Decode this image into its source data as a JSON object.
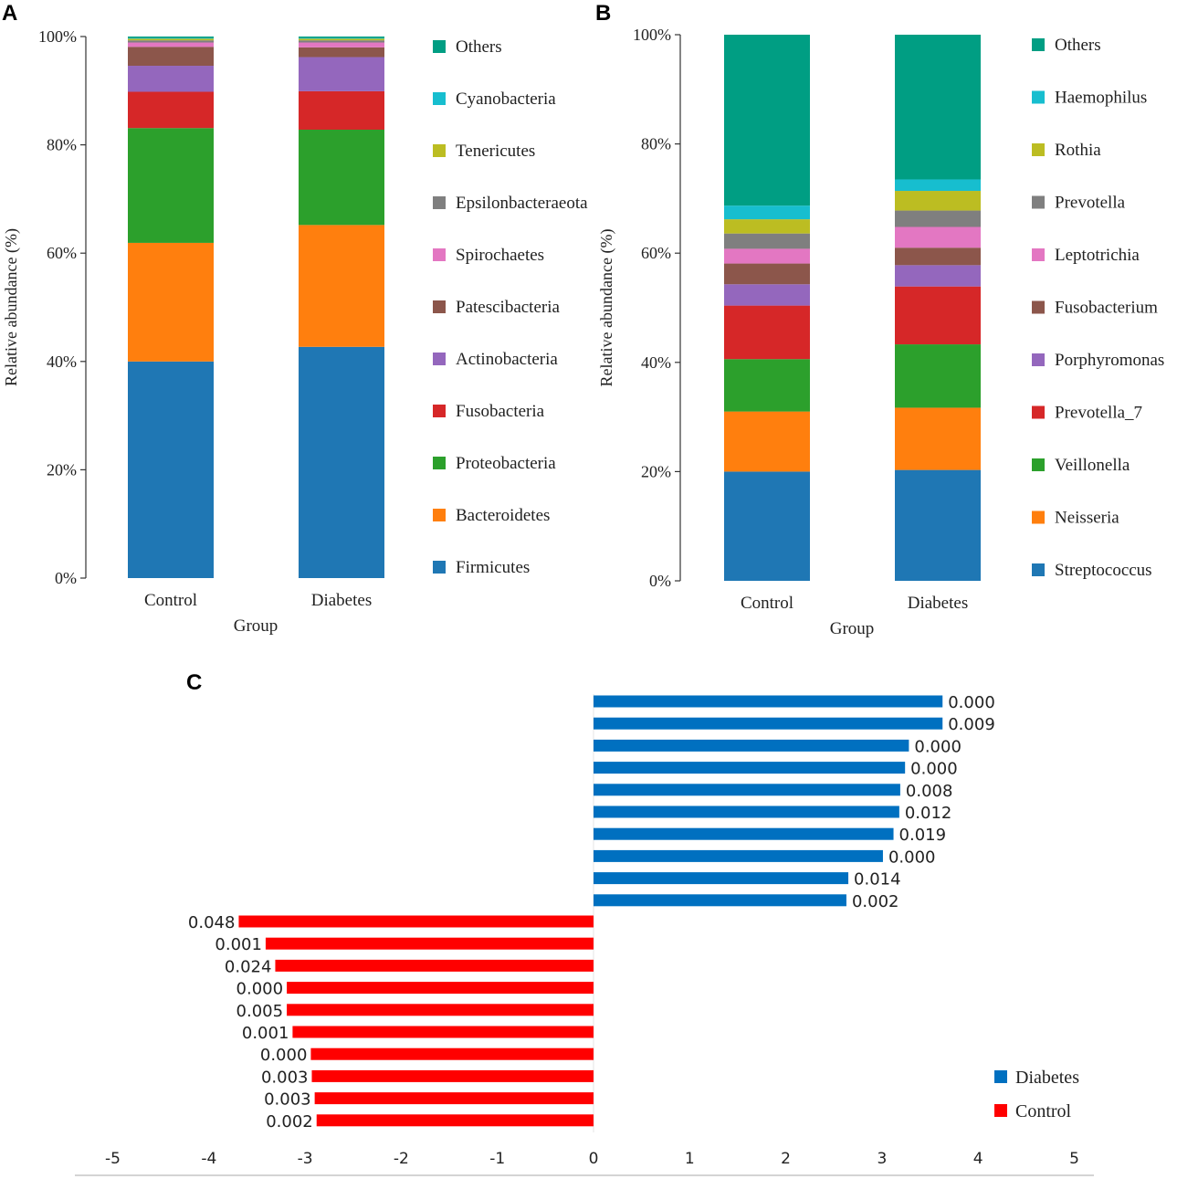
{
  "chart_data": [
    {
      "panel": "A",
      "type": "bar",
      "stacked": true,
      "categories": [
        "Control",
        "Diabetes"
      ],
      "xlabel": "Group",
      "ylabel": "Relative abundance (%)",
      "yticks": [
        "0%",
        "20%",
        "40%",
        "60%",
        "80%",
        "100%"
      ],
      "ylim": [
        0,
        100
      ],
      "series": [
        {
          "name": "Firmicutes",
          "color": "#1f77b4",
          "values": [
            40.0,
            42.7
          ]
        },
        {
          "name": "Bacteroidetes",
          "color": "#ff7f0e",
          "values": [
            21.9,
            22.5
          ]
        },
        {
          "name": "Proteobacteria",
          "color": "#2ca02c",
          "values": [
            21.2,
            17.6
          ]
        },
        {
          "name": "Fusobacteria",
          "color": "#d62728",
          "values": [
            6.7,
            7.1
          ]
        },
        {
          "name": "Actinobacteria",
          "color": "#9467bd",
          "values": [
            4.8,
            6.3
          ]
        },
        {
          "name": "Patescibacteria",
          "color": "#8c564b",
          "values": [
            3.5,
            1.8
          ]
        },
        {
          "name": "Spirochaetes",
          "color": "#e377c2",
          "values": [
            0.8,
            0.9
          ]
        },
        {
          "name": "Epsilonbacteraeota",
          "color": "#7f7f7f",
          "values": [
            0.4,
            0.4
          ]
        },
        {
          "name": "Tenericutes",
          "color": "#bcbd22",
          "values": [
            0.3,
            0.3
          ]
        },
        {
          "name": "Cyanobacteria",
          "color": "#17becf",
          "values": [
            0.1,
            0.1
          ]
        },
        {
          "name": "Others",
          "color": "#009e83",
          "values": [
            0.3,
            0.3
          ]
        }
      ]
    },
    {
      "panel": "B",
      "type": "bar",
      "stacked": true,
      "categories": [
        "Control",
        "Diabetes"
      ],
      "xlabel": "Group",
      "ylabel": "Relative abundance (%)",
      "yticks": [
        "0%",
        "20%",
        "40%",
        "60%",
        "80%",
        "100%"
      ],
      "ylim": [
        0,
        100
      ],
      "series": [
        {
          "name": "Streptococcus",
          "color": "#1f77b4",
          "values": [
            20.0,
            20.3
          ]
        },
        {
          "name": "Neisseria",
          "color": "#ff7f0e",
          "values": [
            11.0,
            11.4
          ]
        },
        {
          "name": "Veillonella",
          "color": "#2ca02c",
          "values": [
            9.6,
            11.6
          ]
        },
        {
          "name": "Prevotella_7",
          "color": "#d62728",
          "values": [
            9.8,
            10.6
          ]
        },
        {
          "name": "Porphyromonas",
          "color": "#9467bd",
          "values": [
            3.9,
            3.9
          ]
        },
        {
          "name": "Fusobacterium",
          "color": "#8c564b",
          "values": [
            3.8,
            3.2
          ]
        },
        {
          "name": "Leptotrichia",
          "color": "#e377c2",
          "values": [
            2.7,
            3.8
          ]
        },
        {
          "name": "Prevotella",
          "color": "#7f7f7f",
          "values": [
            2.8,
            3.0
          ]
        },
        {
          "name": "Rothia",
          "color": "#bcbd22",
          "values": [
            2.6,
            3.6
          ]
        },
        {
          "name": "Haemophilus",
          "color": "#17becf",
          "values": [
            2.5,
            2.1
          ]
        },
        {
          "name": "Others",
          "color": "#009e83",
          "values": [
            31.3,
            26.5
          ]
        }
      ]
    },
    {
      "panel": "C",
      "type": "bar",
      "orientation": "horizontal",
      "xlim": [
        -5,
        5
      ],
      "xticks": [
        -5,
        -4,
        -3,
        -2,
        -1,
        0,
        1,
        2,
        3,
        4,
        5
      ],
      "series": [
        {
          "name": "Diabetes",
          "color": "#0070c0",
          "values": [
            3.63,
            3.63,
            3.28,
            3.24,
            3.19,
            3.18,
            3.12,
            3.01,
            2.65,
            2.63
          ],
          "labels": [
            "0.000",
            "0.009",
            "0.000",
            "0.000",
            "0.008",
            "0.012",
            "0.019",
            "0.000",
            "0.014",
            "0.002"
          ]
        },
        {
          "name": "Control",
          "color": "#ff0000",
          "values": [
            -3.69,
            -3.41,
            -3.31,
            -3.19,
            -3.19,
            -3.13,
            -2.94,
            -2.93,
            -2.9,
            -2.88
          ],
          "labels": [
            "0.048",
            "0.001",
            "0.024",
            "0.000",
            "0.005",
            "0.001",
            "0.000",
            "0.003",
            "0.003",
            "0.002"
          ]
        }
      ],
      "legend": [
        "Diabetes",
        "Control"
      ]
    }
  ]
}
